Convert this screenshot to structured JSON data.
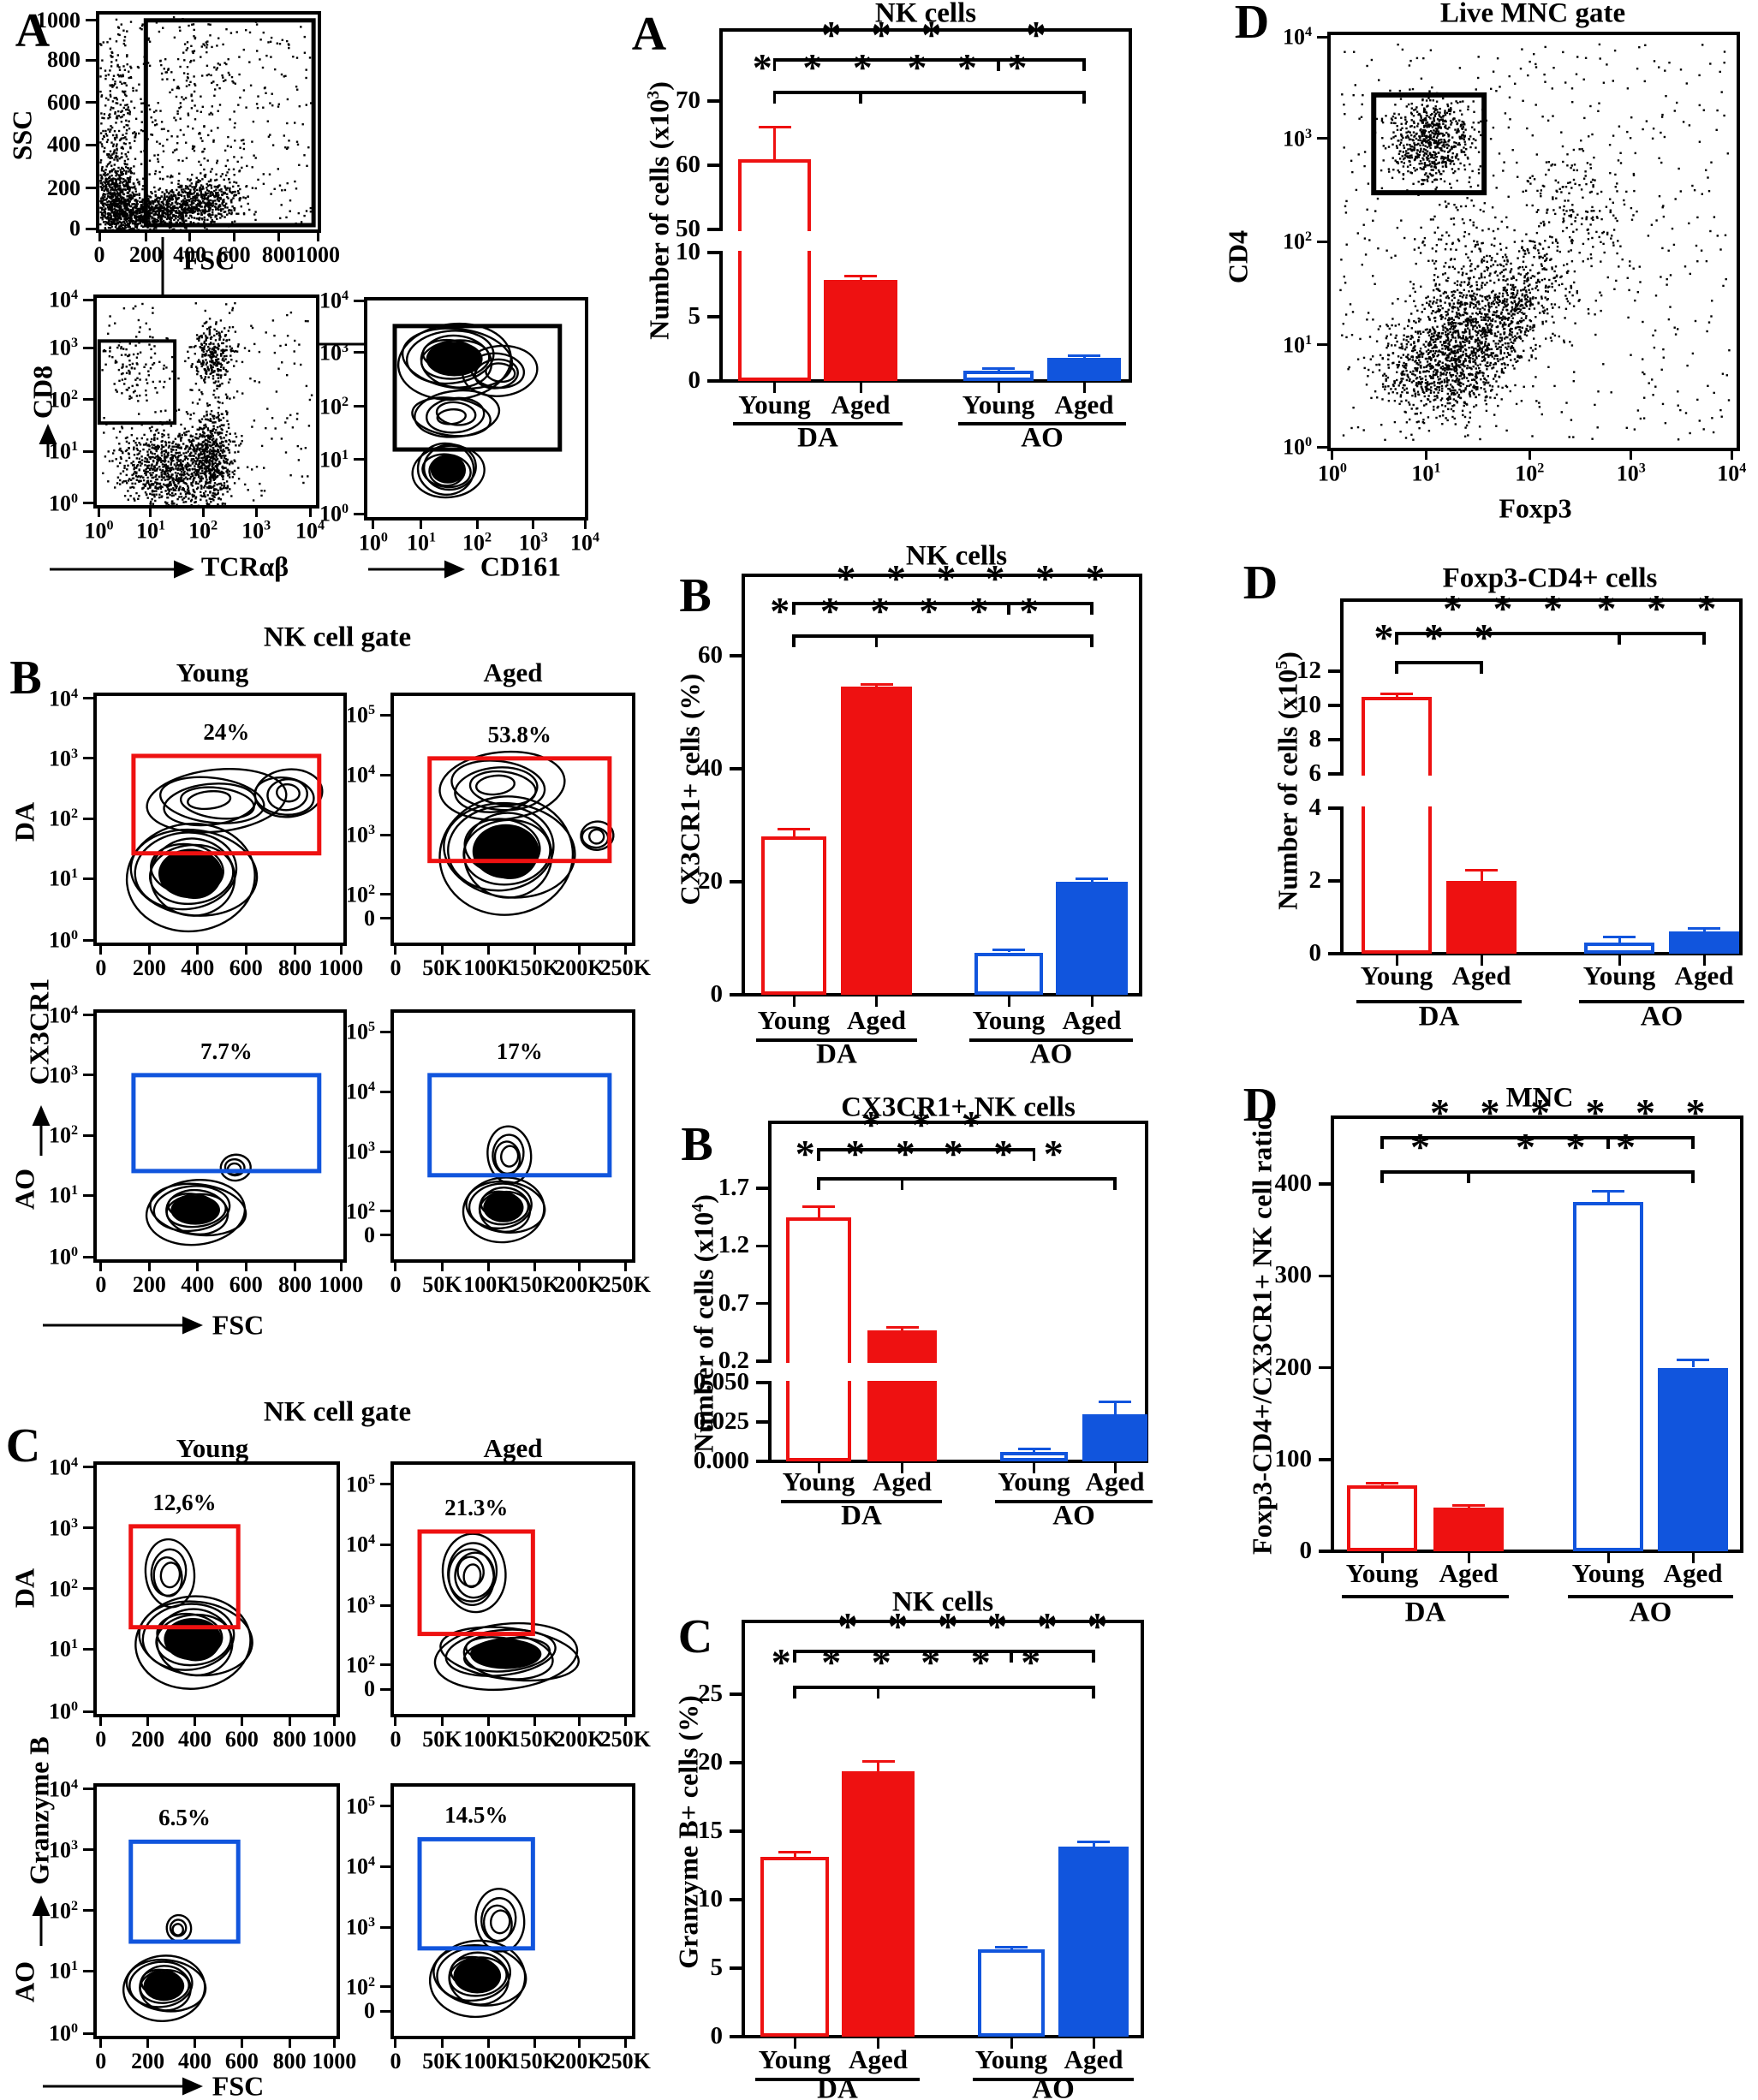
{
  "colors": {
    "red": "#ee1111",
    "blue": "#1155dd",
    "black": "#000000",
    "background": "#ffffff"
  },
  "panel_A_flow": {
    "letter": "A",
    "ssc_fsc": {
      "ylabel": "SSC",
      "xlabel": "FSC",
      "yticks": [
        "1000",
        "800",
        "600",
        "400",
        "200",
        "0"
      ],
      "xticks": [
        "0",
        "200",
        "400",
        "600",
        "800",
        "1000"
      ]
    },
    "cd8_tcr": {
      "ylabel": "CD8",
      "xlabel": "TCRαβ",
      "yticks": [
        "10^4",
        "10^3",
        "10^2",
        "10^1",
        "10^0"
      ],
      "xticks": [
        "10^0",
        "10^1",
        "10^2",
        "10^3",
        "10^4"
      ]
    },
    "cd161": {
      "xlabel": "CD161",
      "yticks": [
        "10^4",
        "10^3",
        "10^2",
        "10^1",
        "10^0"
      ],
      "xticks": [
        "10^0",
        "10^1",
        "10^2",
        "10^3",
        "10^4"
      ]
    }
  },
  "panel_B_flow": {
    "letter": "B",
    "title": "NK cell gate",
    "columns": [
      "Young",
      "Aged"
    ],
    "rows": [
      "DA",
      "AO"
    ],
    "ylabel": "CX3CR1",
    "xlabel": "FSC",
    "lin_yticks": [
      "10^4",
      "10^3",
      "10^2",
      "10^1",
      "10^0"
    ],
    "lin_xticks": [
      "0",
      "200",
      "400",
      "600",
      "800",
      "1000"
    ],
    "log_yticks": [
      "10^5",
      "10^4",
      "10^3",
      "10^2",
      "0"
    ],
    "k_xticks": [
      "0",
      "50K",
      "100K",
      "150K",
      "200K",
      "250K"
    ],
    "gates": [
      {
        "pct": "24%"
      },
      {
        "pct": "53.8%"
      },
      {
        "pct": "7.7%"
      },
      {
        "pct": "17%"
      }
    ]
  },
  "panel_C_flow": {
    "letter": "C",
    "title": "NK cell gate",
    "columns": [
      "Young",
      "Aged"
    ],
    "rows": [
      "DA",
      "AO"
    ],
    "ylabel": "Granzyme B",
    "xlabel": "FSC",
    "lin_yticks": [
      "10^4",
      "10^3",
      "10^2",
      "10^1",
      "10^0"
    ],
    "lin_xticks": [
      "0",
      "200",
      "400",
      "600",
      "800",
      "1000"
    ],
    "log_yticks": [
      "10^5",
      "10^4",
      "10^3",
      "10^2",
      "0"
    ],
    "k_xticks": [
      "0",
      "50K",
      "100K",
      "150K",
      "200K",
      "250K"
    ],
    "gates": [
      {
        "pct": "12,6%"
      },
      {
        "pct": "21.3%"
      },
      {
        "pct": "6.5%"
      },
      {
        "pct": "14.5%"
      }
    ]
  },
  "panel_D_flow": {
    "letter": "D",
    "title": "Live MNC gate",
    "ylabel": "CD4",
    "xlabel": "Foxp3",
    "yticks": [
      "10^4",
      "10^3",
      "10^2",
      "10^1",
      "10^0"
    ],
    "xticks": [
      "10^0",
      "10^1",
      "10^2",
      "10^3",
      "10^4"
    ]
  },
  "chart_data": [
    {
      "id": "A_nk",
      "panel_letter": "A",
      "type": "bar",
      "title": "NK cells",
      "ylabel": "Number of cells (x10^3)",
      "categories": [
        "Young",
        "Aged",
        "Young",
        "Aged"
      ],
      "groups": [
        {
          "label": "DA",
          "bars": [
            0,
            1
          ]
        },
        {
          "label": "AO",
          "bars": [
            2,
            3
          ]
        }
      ],
      "values": [
        61,
        7.9,
        0.8,
        1.8
      ],
      "errors": [
        5,
        0.3,
        0.15,
        0.2
      ],
      "bar_styles": [
        "red-outline",
        "red-solid",
        "blue-outline",
        "blue-solid"
      ],
      "y_axis": {
        "broken": true,
        "lower": {
          "ticks": [
            0,
            5,
            10
          ],
          "labels": [
            "0",
            "5",
            "10"
          ]
        },
        "upper": {
          "ticks": [
            50,
            60,
            70
          ],
          "labels": [
            "50",
            "60",
            "70"
          ]
        }
      },
      "significance": [
        {
          "spans": [
            {
              "from": 0,
              "to": 2,
              "stars": "***"
            },
            {
              "from": 2,
              "to": 3,
              "stars": "*"
            }
          ]
        },
        {
          "spans": [
            {
              "from": 0,
              "to": 1,
              "stars": "***"
            },
            {
              "from": 1,
              "to": 3,
              "stars": "***"
            }
          ]
        }
      ]
    },
    {
      "id": "B_pct",
      "panel_letter": "B",
      "type": "bar",
      "title": "NK cells",
      "ylabel": "CX3CR1+ cells (%)",
      "categories": [
        "Young",
        "Aged",
        "Young",
        "Aged"
      ],
      "groups": [
        {
          "label": "DA",
          "bars": [
            0,
            1
          ]
        },
        {
          "label": "AO",
          "bars": [
            2,
            3
          ]
        }
      ],
      "values": [
        28,
        54.5,
        7.5,
        20
      ],
      "errors": [
        1.3,
        0.4,
        0.5,
        0.6
      ],
      "bar_styles": [
        "red-outline",
        "red-solid",
        "blue-outline",
        "blue-solid"
      ],
      "y_axis": {
        "broken": false,
        "ticks": [
          0,
          20,
          40,
          60
        ],
        "labels": [
          "0",
          "20",
          "40",
          "60"
        ]
      },
      "significance": [
        {
          "spans": [
            {
              "from": 0,
              "to": 2,
              "stars": "***"
            },
            {
              "from": 2,
              "to": 3,
              "stars": "***"
            }
          ]
        },
        {
          "spans": [
            {
              "from": 0,
              "to": 1,
              "stars": "***"
            },
            {
              "from": 1,
              "to": 3,
              "stars": "***"
            }
          ]
        }
      ]
    },
    {
      "id": "B_num",
      "panel_letter": "B",
      "type": "bar",
      "title": "CX3CR1+ NK cells",
      "ylabel": "Number of cells (x10^4)",
      "categories": [
        "Young",
        "Aged",
        "Young",
        "Aged"
      ],
      "groups": [
        {
          "label": "DA",
          "bars": [
            0,
            1
          ]
        },
        {
          "label": "AO",
          "bars": [
            2,
            3
          ]
        }
      ],
      "values": [
        1.45,
        0.47,
        0.006,
        0.03
      ],
      "errors": [
        0.09,
        0.02,
        0.002,
        0.008
      ],
      "bar_styles": [
        "red-outline",
        "red-solid",
        "blue-outline",
        "blue-solid"
      ],
      "y_axis": {
        "broken": true,
        "lower": {
          "ticks": [
            0,
            0.025,
            0.05
          ],
          "labels": [
            "0.000",
            "0.025",
            "0.050"
          ]
        },
        "upper": {
          "ticks": [
            0.2,
            0.7,
            1.2,
            1.7
          ],
          "labels": [
            "0.2",
            "0.7",
            "1.2",
            "1.7"
          ]
        }
      },
      "significance": [
        {
          "spans": [
            {
              "from": 0,
              "to": 2,
              "stars": "***"
            }
          ]
        },
        {
          "spans": [
            {
              "from": 0,
              "to": 1,
              "stars": "***"
            },
            {
              "from": 1,
              "to": 3,
              "stars": "***"
            }
          ]
        }
      ]
    },
    {
      "id": "C_pct",
      "panel_letter": "C",
      "type": "bar",
      "title": "NK cells",
      "ylabel": "Granzyme B+ cells (%)",
      "categories": [
        "Young",
        "Aged",
        "Young",
        "Aged"
      ],
      "groups": [
        {
          "label": "DA",
          "bars": [
            0,
            1
          ]
        },
        {
          "label": "AO",
          "bars": [
            2,
            3
          ]
        }
      ],
      "values": [
        13.1,
        19.4,
        6.4,
        13.9
      ],
      "errors": [
        0.4,
        0.7,
        0.15,
        0.3
      ],
      "bar_styles": [
        "red-outline",
        "red-solid",
        "blue-outline",
        "blue-solid"
      ],
      "y_axis": {
        "broken": false,
        "ticks": [
          0,
          5,
          10,
          15,
          20,
          25
        ],
        "labels": [
          "0",
          "5",
          "10",
          "15",
          "20",
          "25"
        ]
      },
      "significance": [
        {
          "spans": [
            {
              "from": 0,
              "to": 2,
              "stars": "***"
            },
            {
              "from": 2,
              "to": 3,
              "stars": "***"
            }
          ]
        },
        {
          "spans": [
            {
              "from": 0,
              "to": 1,
              "stars": "***"
            },
            {
              "from": 1,
              "to": 3,
              "stars": "***"
            }
          ]
        }
      ]
    },
    {
      "id": "D_num",
      "panel_letter": "D",
      "type": "bar",
      "title": "Foxp3-CD4+ cells",
      "ylabel": "Number of cells (x10^5)",
      "categories": [
        "Young",
        "Aged",
        "Young",
        "Aged"
      ],
      "groups": [
        {
          "label": "DA",
          "bars": [
            0,
            1
          ]
        },
        {
          "label": "AO",
          "bars": [
            2,
            3
          ]
        }
      ],
      "values": [
        10.5,
        2.0,
        0.3,
        0.62
      ],
      "errors": [
        0.2,
        0.3,
        0.15,
        0.08
      ],
      "bar_styles": [
        "red-outline",
        "red-solid",
        "blue-outline",
        "blue-solid"
      ],
      "y_axis": {
        "broken": true,
        "lower": {
          "ticks": [
            0,
            2,
            4
          ],
          "labels": [
            "0",
            "2",
            "4"
          ]
        },
        "upper": {
          "ticks": [
            6,
            8,
            10,
            12
          ],
          "labels": [
            "6",
            "8",
            "10",
            "12"
          ]
        }
      },
      "significance": [
        {
          "spans": [
            {
              "from": 0,
              "to": 2,
              "stars": "***"
            },
            {
              "from": 2,
              "to": 3,
              "stars": "***"
            }
          ]
        },
        {
          "spans": [
            {
              "from": 0,
              "to": 1,
              "stars": "***"
            }
          ]
        }
      ]
    },
    {
      "id": "D_ratio",
      "panel_letter": "D",
      "type": "bar",
      "title": "MNC",
      "ylabel": "Foxp3-CD4+/CX3CR1+ NK cell ratio",
      "categories": [
        "Young",
        "Aged",
        "Young",
        "Aged"
      ],
      "groups": [
        {
          "label": "DA",
          "bars": [
            0,
            1
          ]
        },
        {
          "label": "AO",
          "bars": [
            2,
            3
          ]
        }
      ],
      "values": [
        72,
        48,
        380,
        200
      ],
      "errors": [
        2,
        1.5,
        12,
        8
      ],
      "bar_styles": [
        "red-outline",
        "red-solid",
        "blue-outline",
        "blue-solid"
      ],
      "y_axis": {
        "broken": false,
        "ticks": [
          0,
          100,
          200,
          300,
          400
        ],
        "labels": [
          "0",
          "100",
          "200",
          "300",
          "400"
        ]
      },
      "significance": [
        {
          "spans": [
            {
              "from": 0,
              "to": 2,
              "stars": "***"
            },
            {
              "from": 2,
              "to": 3,
              "stars": "***"
            }
          ]
        },
        {
          "spans": [
            {
              "from": 0,
              "to": 1,
              "stars": "*"
            },
            {
              "from": 1,
              "to": 3,
              "stars": "***"
            }
          ]
        }
      ]
    }
  ]
}
